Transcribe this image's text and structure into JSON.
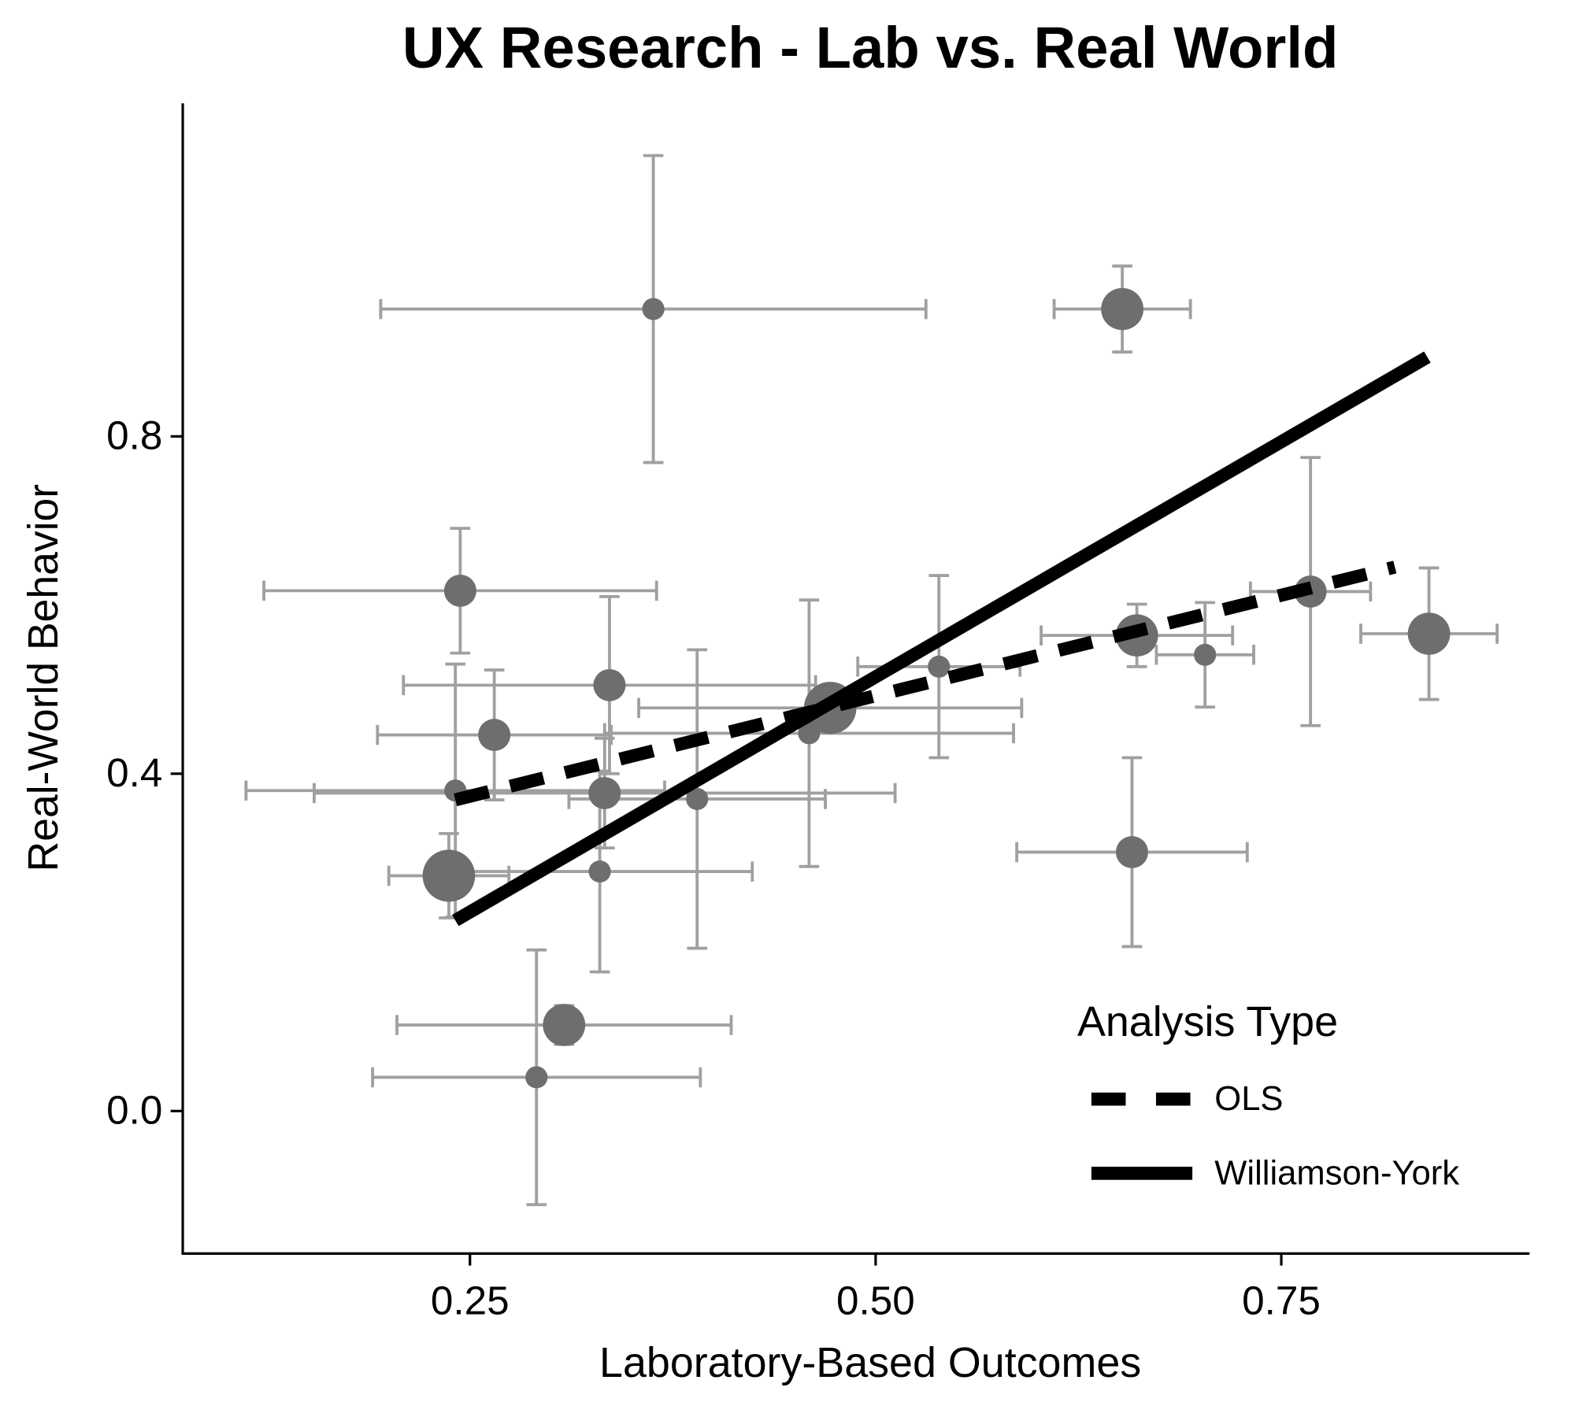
{
  "chart_data": {
    "type": "scatter",
    "title": "UX Research - Lab vs. Real World",
    "x_label": "Laboratory-Based Outcomes",
    "y_label": "Real-World Behavior",
    "xlim": [
      0.073,
      0.903
    ],
    "ylim": [
      -0.169,
      1.195
    ],
    "xticks": [
      0.25,
      {
        "value": 0.5,
        "label": "0.50"
      },
      0.75
    ],
    "yticks": [
      {
        "value": 0,
        "label": "0.0"
      },
      0.4,
      0.8
    ],
    "point_color": "#6e6e6e",
    "errorbar_color": "#a0a0a0",
    "points": {
      "x": [
        0.363,
        0.652,
        0.244,
        0.336,
        0.265,
        0.472,
        0.459,
        0.539,
        0.661,
        0.703,
        0.768,
        0.841,
        0.241,
        0.333,
        0.39,
        0.237,
        0.33,
        0.658,
        0.308,
        0.291
      ],
      "y": [
        0.951,
        0.951,
        0.617,
        0.505,
        0.446,
        0.478,
        0.448,
        0.527,
        0.564,
        0.541,
        0.616,
        0.566,
        0.38,
        0.377,
        0.37,
        0.279,
        0.284,
        0.307,
        0.102,
        0.04
      ],
      "x_err": [
        0.168,
        0.042,
        0.121,
        0.127,
        0.072,
        0.118,
        0.126,
        0.05,
        0.059,
        0.03,
        0.037,
        0.042,
        0.129,
        0.179,
        0.079,
        0.037,
        0.094,
        0.071,
        0.103,
        0.101
      ],
      "y_err": [
        0.182,
        0.051,
        0.074,
        0.105,
        0.077,
        0.02,
        0.158,
        0.108,
        0.037,
        0.062,
        0.159,
        0.078,
        0.15,
        0.065,
        0.177,
        0.05,
        0.119,
        0.112,
        0.023,
        0.151
      ],
      "sizes": [
        1,
        3,
        2,
        2,
        2,
        4,
        1,
        1,
        3,
        1,
        2,
        3,
        1,
        2,
        1,
        4,
        1,
        2,
        3,
        1
      ]
    },
    "legend_title": "Analysis Type",
    "legend_position": "bottom-right",
    "lines": [
      {
        "name": "OLS",
        "style": "dashed",
        "color": "#000000",
        "x": [
          0.241,
          0.82
        ],
        "y": [
          0.369,
          0.645
        ]
      },
      {
        "name": "Williamson-York",
        "style": "solid",
        "color": "#000000",
        "x": [
          0.241,
          0.84
        ],
        "y": [
          0.226,
          0.894
        ]
      }
    ]
  }
}
